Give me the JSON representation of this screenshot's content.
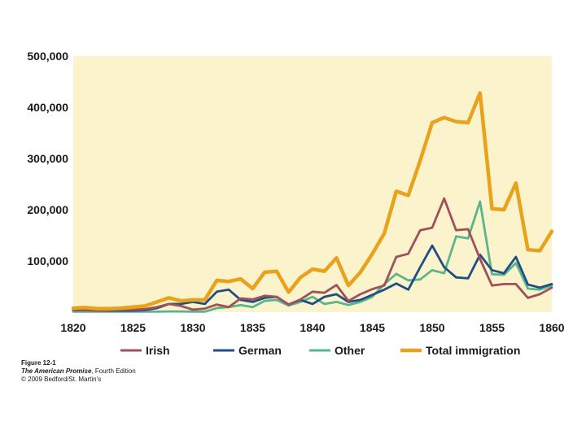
{
  "chart_data": {
    "type": "line",
    "title": "",
    "xlabel": "",
    "ylabel": "",
    "x": [
      1820,
      1821,
      1822,
      1823,
      1824,
      1825,
      1826,
      1827,
      1828,
      1829,
      1830,
      1831,
      1832,
      1833,
      1834,
      1835,
      1836,
      1837,
      1838,
      1839,
      1840,
      1841,
      1842,
      1843,
      1844,
      1845,
      1846,
      1847,
      1848,
      1849,
      1850,
      1851,
      1852,
      1853,
      1854,
      1855,
      1856,
      1857,
      1858,
      1859,
      1860
    ],
    "xlim": [
      1820,
      1860
    ],
    "ylim": [
      0,
      500000
    ],
    "x_ticks": [
      1820,
      1825,
      1830,
      1835,
      1840,
      1845,
      1850,
      1855,
      1860
    ],
    "x_tick_labels": [
      "1820",
      "1825",
      "1830",
      "1835",
      "1840",
      "1845",
      "1850",
      "1855",
      "1860"
    ],
    "y_ticks": [
      100000,
      200000,
      300000,
      400000,
      500000
    ],
    "y_tick_labels": [
      "100,000",
      "200,000",
      "300,000",
      "400,000",
      "500,000"
    ],
    "grid": false,
    "legend_position": "bottom",
    "series": [
      {
        "name": "Irish",
        "color": "#a0505a",
        "values": [
          4000,
          4000,
          3000,
          4000,
          5000,
          5000,
          6000,
          10000,
          16000,
          12000,
          5000,
          7000,
          15000,
          10000,
          27000,
          25000,
          32000,
          30000,
          15000,
          25000,
          40000,
          38000,
          53000,
          22000,
          35000,
          45000,
          52000,
          108000,
          114000,
          160000,
          165000,
          222000,
          160000,
          162000,
          104000,
          52000,
          55000,
          55000,
          28000,
          35000,
          48000
        ]
      },
      {
        "name": "German",
        "color": "#1f4e85",
        "values": [
          4000,
          4000,
          3000,
          3000,
          3000,
          3000,
          4000,
          8000,
          16000,
          16000,
          20000,
          16000,
          40000,
          44000,
          24000,
          20000,
          28000,
          30000,
          15000,
          24000,
          16000,
          30000,
          35000,
          20000,
          24000,
          34000,
          44000,
          56000,
          44000,
          88000,
          130000,
          88000,
          68000,
          66000,
          112000,
          82000,
          76000,
          108000,
          54000,
          48000,
          55000
        ]
      },
      {
        "name": "Other",
        "color": "#5bb58c",
        "values": [
          1000,
          1000,
          1000,
          1000,
          1000,
          1000,
          1000,
          1000,
          1500,
          1500,
          1000,
          1000,
          8000,
          10000,
          14000,
          10000,
          22000,
          24000,
          13000,
          20000,
          30000,
          16000,
          20000,
          14000,
          20000,
          30000,
          55000,
          75000,
          62000,
          64000,
          82000,
          76000,
          148000,
          144000,
          216000,
          74000,
          73000,
          96000,
          46000,
          44000,
          52000
        ]
      },
      {
        "name": "Total immigration",
        "color": "#e8a21b",
        "values": [
          8000,
          9000,
          7000,
          7000,
          8000,
          10000,
          12000,
          20000,
          28000,
          22000,
          24000,
          24000,
          62000,
          60000,
          65000,
          46000,
          78000,
          80000,
          39000,
          68000,
          84000,
          80000,
          106000,
          52000,
          78000,
          114000,
          154000,
          236000,
          228000,
          296000,
          370000,
          380000,
          372000,
          370000,
          428000,
          202000,
          200000,
          252000,
          122000,
          120000,
          158000
        ]
      }
    ]
  },
  "caption": {
    "figure": "Figure 12-1",
    "book_title": "The American Promise",
    "book_edition": ", Fourth Edition",
    "copyright": "© 2009 Bedford/St. Martin's"
  }
}
